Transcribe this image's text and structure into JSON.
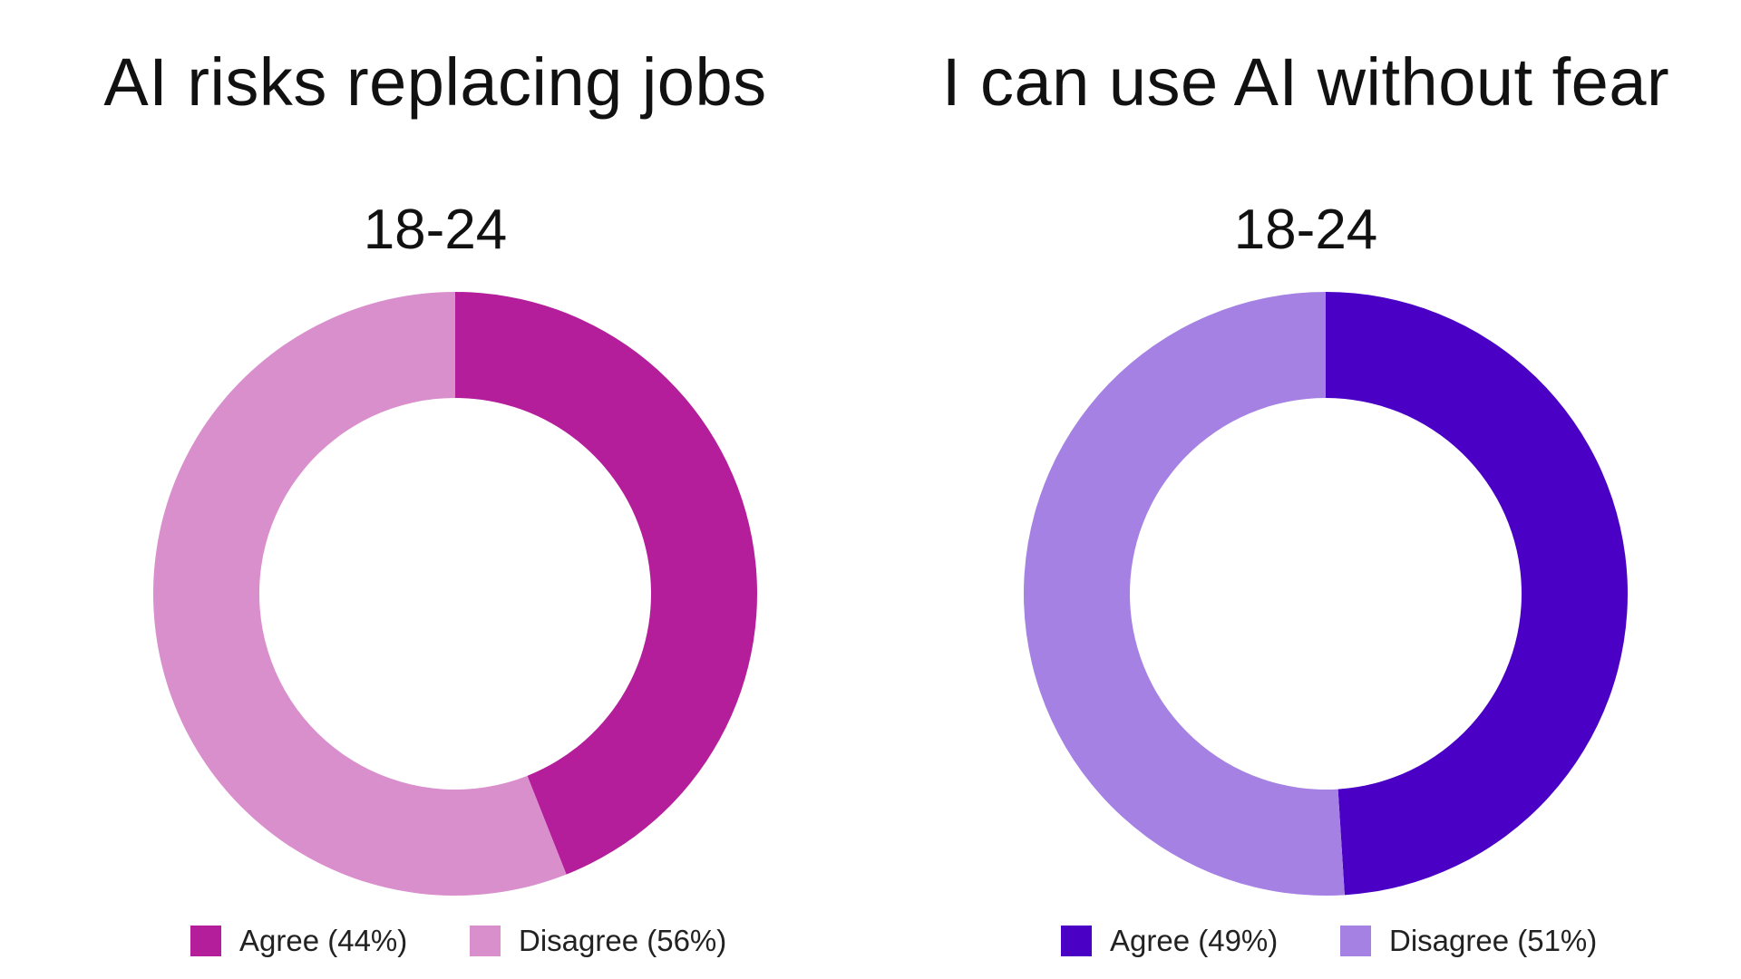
{
  "chart_data": [
    {
      "type": "pie",
      "title": "AI risks replacing jobs",
      "subtitle": "18-24",
      "slices": [
        {
          "label": "Agree",
          "value": 44,
          "color": "#b41e9b",
          "legend": "Agree (44%)"
        },
        {
          "label": "Disagree",
          "value": 56,
          "color": "#da8fcd",
          "legend": "Disagree (56%)"
        }
      ],
      "legend_position": "bottom"
    },
    {
      "type": "pie",
      "title": "I can use AI without fear",
      "subtitle": "18-24",
      "slices": [
        {
          "label": "Agree",
          "value": 49,
          "color": "#4b00c6",
          "legend": "Agree (49%)"
        },
        {
          "label": "Disagree",
          "value": 51,
          "color": "#a581e3",
          "legend": "Disagree (51%)"
        }
      ],
      "legend_position": "bottom"
    }
  ]
}
